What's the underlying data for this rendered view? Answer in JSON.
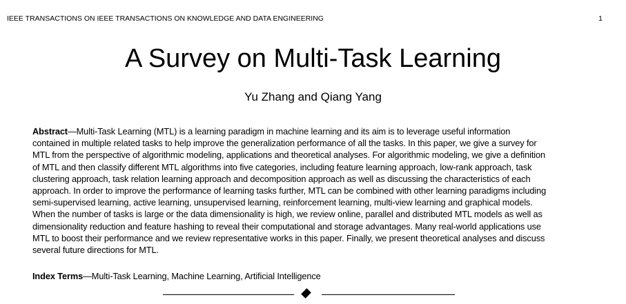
{
  "header": {
    "running_title": "IEEE TRANSACTIONS ON IEEE TRANSACTIONS ON KNOWLEDGE AND DATA ENGINEERING",
    "page_number": "1"
  },
  "title": "A Survey on Multi-Task Learning",
  "authors": "Yu Zhang and Qiang Yang",
  "abstract": {
    "label": "Abstract",
    "lines": [
      "—Multi-Task Learning (MTL) is a learning paradigm in machine learning and its aim is to leverage useful information",
      "contained in multiple related tasks to help improve the generalization performance of all the tasks. In this paper, we give a survey for",
      "MTL from the perspective of algorithmic modeling, applications and theoretical analyses. For algorithmic modeling, we give a definition",
      "of MTL and then classify different MTL algorithms into five categories, including feature learning approach, low-rank approach, task",
      "clustering approach, task relation learning approach and decomposition approach as well as discussing the characteristics of each",
      "approach. In order to improve the performance of learning tasks further, MTL can be combined with other learning paradigms including",
      "semi-supervised learning, active learning, unsupervised learning, reinforcement learning, multi-view learning and graphical models.",
      "When the number of tasks is large or the data dimensionality is high, we review online, parallel and distributed MTL models as well as",
      "dimensionality reduction and feature hashing to reveal their computational and storage advantages. Many real-world applications use",
      "MTL to boost their performance and we review representative works in this paper. Finally, we present theoretical analyses and discuss",
      "several future directions for MTL."
    ]
  },
  "index_terms": {
    "label": "Index Terms",
    "text": "—Multi-Task Learning, Machine Learning, Artificial Intelligence"
  }
}
